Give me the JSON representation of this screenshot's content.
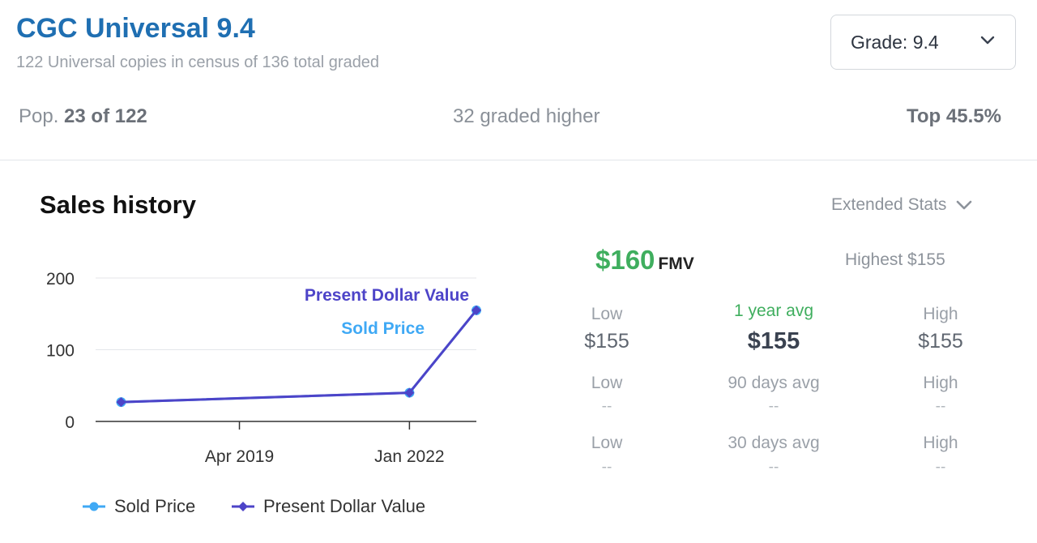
{
  "header": {
    "title": "CGC Universal 9.4",
    "subtitle": "122 Universal copies in census of 136 total graded",
    "grade_select": {
      "label": "Grade: 9.4"
    }
  },
  "population": {
    "pop_prefix": "Pop.",
    "pop_value": "23 of 122",
    "graded_higher": "32 graded higher",
    "top_percent": "Top 45.5%"
  },
  "sales": {
    "title": "Sales history",
    "extended_stats_label": "Extended Stats"
  },
  "chart_data": {
    "type": "line",
    "x": [
      "2017-05-01",
      "2022-01-01",
      "2023-02-01"
    ],
    "series": [
      {
        "name": "Sold Price",
        "values": [
          27,
          40,
          155
        ],
        "color": "#3fa9f5"
      },
      {
        "name": "Present Dollar Value",
        "values": [
          27,
          40,
          155
        ],
        "color": "#4d44c8"
      }
    ],
    "ylim": [
      0,
      200
    ],
    "yticks": [
      "0",
      "100",
      "200"
    ],
    "xtick_labels": [
      {
        "date": "2019-04-01",
        "label": "Apr 2019"
      },
      {
        "date": "2022-01-01",
        "label": "Jan 2022"
      }
    ],
    "xlim": [
      "2016-12-01",
      "2023-02-01"
    ],
    "annotations": [
      "Present Dollar Value",
      "Sold Price"
    ],
    "grid": true,
    "legend_position": "bottom"
  },
  "fmv": {
    "value": "$160",
    "label": "FMV"
  },
  "highest": "Highest $155",
  "stats": [
    {
      "low_label": "Low",
      "low": "$155",
      "avg_label": "1 year avg",
      "avg": "$155",
      "high_label": "High",
      "high": "$155"
    },
    {
      "low_label": "Low",
      "low": "--",
      "avg_label": "90 days avg",
      "avg": "--",
      "high_label": "High",
      "high": "--"
    },
    {
      "low_label": "Low",
      "low": "--",
      "avg_label": "30 days avg",
      "avg": "--",
      "high_label": "High",
      "high": "--"
    }
  ],
  "legend": [
    {
      "name": "Sold Price",
      "color": "#3fa9f5"
    },
    {
      "name": "Present Dollar Value",
      "color": "#4d44c8"
    }
  ],
  "colors": {
    "title_blue": "#1f6fb2",
    "fmv_green": "#3fae5e",
    "sold_price": "#3fa9f5",
    "present_value": "#4d44c8"
  },
  "icons": {
    "grade_chevron": "chevron-down-icon",
    "extended_chevron": "chevron-down-icon"
  }
}
